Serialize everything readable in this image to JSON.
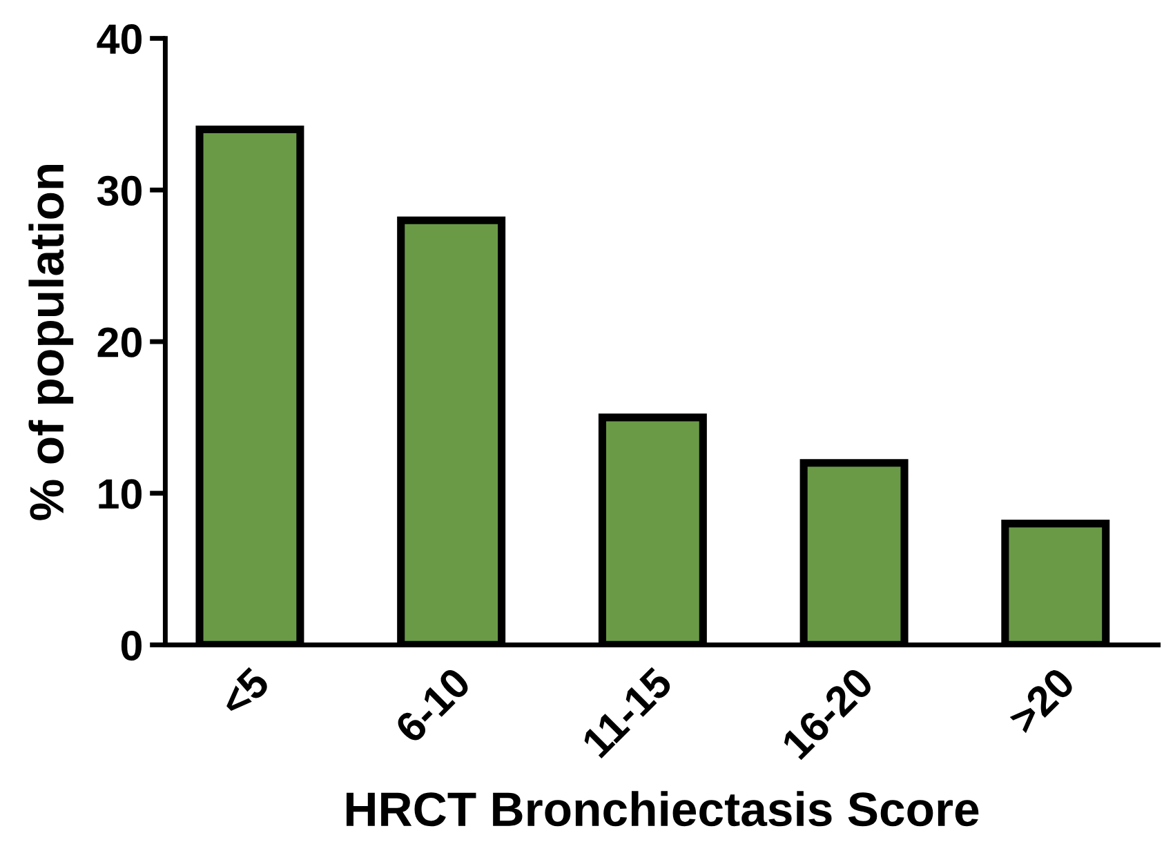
{
  "chart_data": {
    "type": "bar",
    "xlabel": "HRCT Bronchiectasis Score",
    "ylabel": "% of population",
    "categories": [
      "<5",
      "6-10",
      "11-15",
      "16-20",
      ">20"
    ],
    "values": [
      34,
      28,
      15,
      12,
      8
    ],
    "color": "#6b9a47",
    "ylim": [
      0,
      40
    ],
    "yticks": [
      0,
      10,
      20,
      30,
      40
    ],
    "grid": false
  }
}
